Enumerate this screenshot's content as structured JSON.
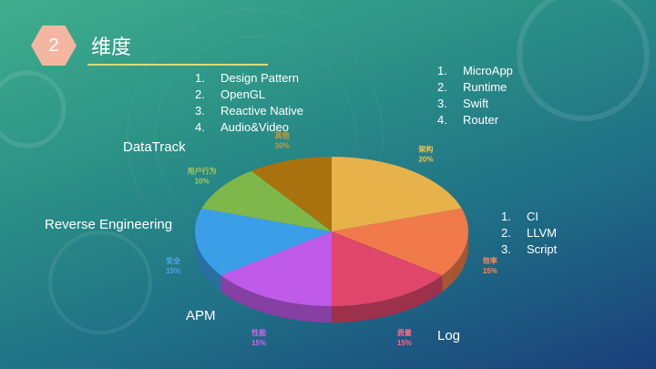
{
  "slide": {
    "number": "2",
    "title": "维度"
  },
  "list_top": [
    {
      "num": "1.",
      "text": "Design Pattern"
    },
    {
      "num": "2.",
      "text": "OpenGL"
    },
    {
      "num": "3.",
      "text": "Reactive Native"
    },
    {
      "num": "4.",
      "text": "Audio&Video"
    }
  ],
  "list_right": [
    {
      "num": "1.",
      "text": "MicroApp"
    },
    {
      "num": "2.",
      "text": "Runtime"
    },
    {
      "num": "3.",
      "text": "Swift"
    },
    {
      "num": "4.",
      "text": "Router"
    }
  ],
  "list_efficiency": [
    {
      "num": "1.",
      "text": "CI"
    },
    {
      "num": "2.",
      "text": "LLVM"
    },
    {
      "num": "3.",
      "text": "Script"
    }
  ],
  "labels": {
    "datatrack": "DataTrack",
    "reverse": "Reverse Engineering",
    "apm": "APM",
    "log": "Log"
  },
  "chart_data": {
    "type": "pie",
    "slices": [
      {
        "name": "架构",
        "value": 20,
        "label": "20%",
        "color": "#e8b24a"
      },
      {
        "name": "效率",
        "value": 15,
        "label": "15%",
        "color": "#f07a4a"
      },
      {
        "name": "质量",
        "value": 15,
        "label": "15%",
        "color": "#e0456a"
      },
      {
        "name": "性能",
        "value": 15,
        "label": "15%",
        "color": "#c05ae8"
      },
      {
        "name": "安全",
        "value": 15,
        "label": "15%",
        "color": "#3b9fe8"
      },
      {
        "name": "用户行为",
        "value": 10,
        "label": "10%",
        "color": "#7fb84a"
      },
      {
        "name": "其他",
        "value": 10,
        "label": "10%",
        "color": "#a9720e"
      }
    ],
    "label_colors": [
      "#f2c24a",
      "#ff8a5a",
      "#ff6a8a",
      "#c56ae8",
      "#4aa8f0",
      "#a8c85a",
      "#d89a2a"
    ]
  }
}
